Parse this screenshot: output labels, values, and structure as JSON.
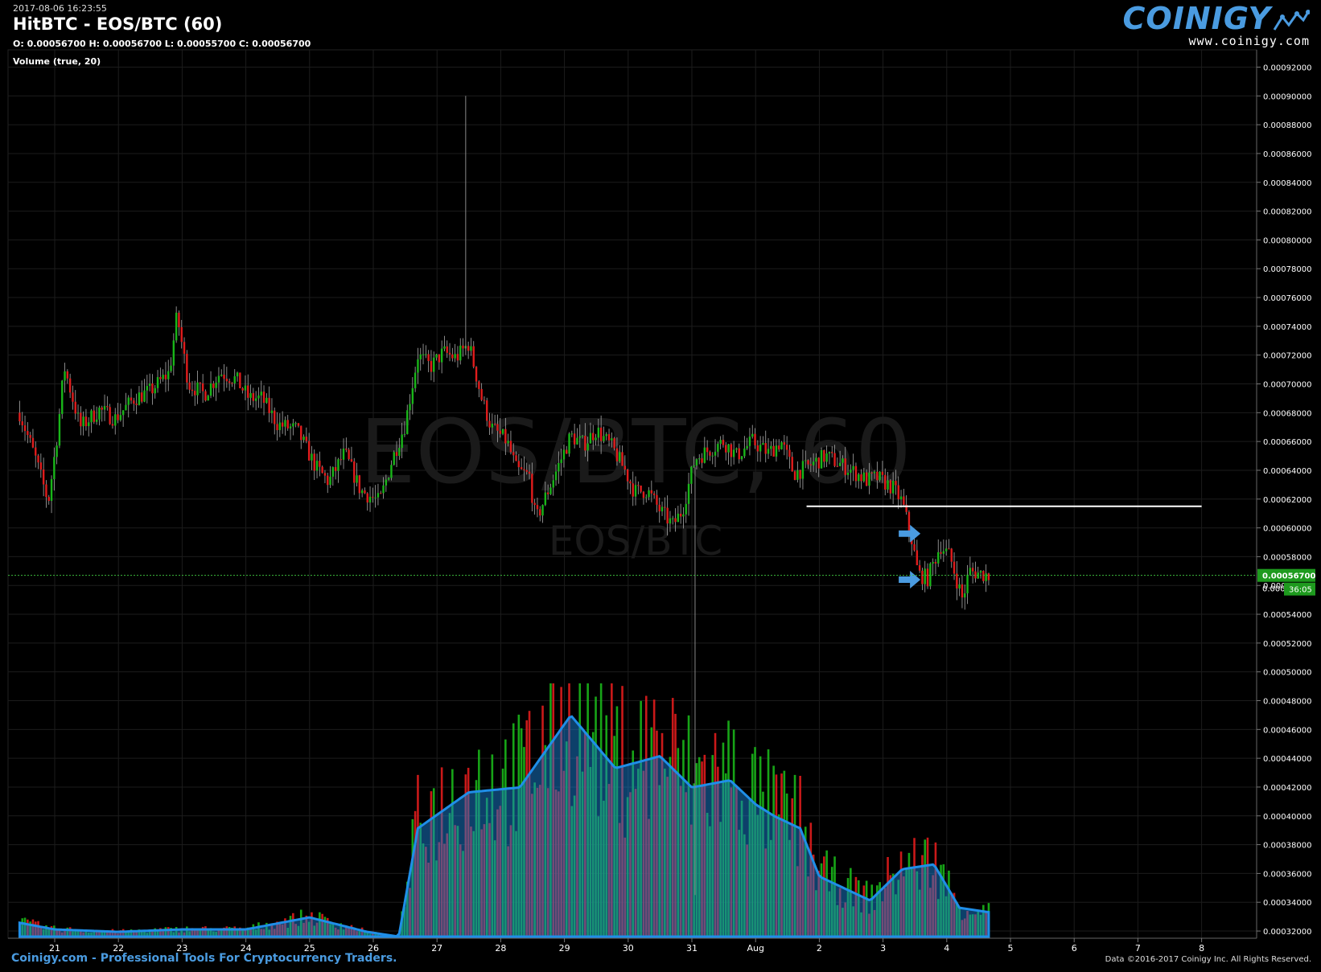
{
  "header": {
    "timestamp": "2017-08-06 16:23:55",
    "title": "HitBTC - EOS/BTC (60)",
    "ohlc": "O: 0.00056700 H: 0.00056700 L: 0.00055700 C: 0.00056700",
    "volume_label": "Volume (true, 20)"
  },
  "logo": {
    "word": "COINIGY",
    "url": "www.coinigy.com"
  },
  "footer": {
    "left": "Coinigy.com - Professional Tools For Cryptocurrency Traders.",
    "right": "Data ©2016-2017 Coinigy Inc. All Rights Reserved."
  },
  "watermark": {
    "main": "EOS/BTC, 60",
    "sub": "EOS/BTC"
  },
  "colors": {
    "up": "#19b619",
    "down": "#e01c1c",
    "volume_area": "#1a7fd4",
    "accent": "#4a9be0",
    "price_line": "#3cba3c"
  },
  "chart_data": {
    "type": "candlestick",
    "xlabel": "",
    "ylabel": "",
    "x_ticks": [
      "21",
      "22",
      "23",
      "24",
      "25",
      "26",
      "27",
      "28",
      "29",
      "30",
      "31",
      "Aug",
      "2",
      "3",
      "4",
      "5",
      "6",
      "7",
      "8"
    ],
    "y_ticks": [
      "0.00032000",
      "0.00034000",
      "0.00036000",
      "0.00038000",
      "0.00040000",
      "0.00042000",
      "0.00044000",
      "0.00046000",
      "0.00048000",
      "0.00050000",
      "0.00052000",
      "0.00054000",
      "0.00056000",
      "0.00058000",
      "0.00060000",
      "0.00062000",
      "0.00064000",
      "0.00066000",
      "0.00068000",
      "0.00070000",
      "0.00072000",
      "0.00074000",
      "0.00076000",
      "0.00078000",
      "0.00080000",
      "0.00082000",
      "0.00084000",
      "0.00086000",
      "0.00088000",
      "0.00090000",
      "0.00092000"
    ],
    "ylim": [
      0.000315,
      0.000932
    ],
    "xlim": [
      20.4,
      39.3
    ],
    "grid": true,
    "close_series": [
      [
        20.45,
        0.00068
      ],
      [
        20.7,
        0.000648
      ],
      [
        20.9,
        0.000618
      ],
      [
        21.05,
        0.000668
      ],
      [
        21.15,
        0.000712
      ],
      [
        21.4,
        0.00067
      ],
      [
        21.7,
        0.000682
      ],
      [
        21.95,
        0.000676
      ],
      [
        22.25,
        0.00069
      ],
      [
        22.5,
        0.000695
      ],
      [
        22.8,
        0.000708
      ],
      [
        22.92,
        0.000748
      ],
      [
        23.1,
        0.0007
      ],
      [
        23.35,
        0.000693
      ],
      [
        23.6,
        0.000708
      ],
      [
        23.85,
        0.000703
      ],
      [
        24.05,
        0.00069
      ],
      [
        24.25,
        0.00069
      ],
      [
        24.5,
        0.000672
      ],
      [
        24.8,
        0.000668
      ],
      [
        25.1,
        0.000642
      ],
      [
        25.3,
        0.000632
      ],
      [
        25.55,
        0.000652
      ],
      [
        25.8,
        0.000626
      ],
      [
        26.1,
        0.000618
      ],
      [
        26.3,
        0.000648
      ],
      [
        26.5,
        0.000672
      ],
      [
        26.7,
        0.00072
      ],
      [
        26.9,
        0.000712
      ],
      [
        27.1,
        0.000722
      ],
      [
        27.3,
        0.000718
      ],
      [
        27.5,
        0.000728
      ],
      [
        27.7,
        0.00069
      ],
      [
        27.85,
        0.00067
      ],
      [
        28.1,
        0.00066
      ],
      [
        28.25,
        0.00064
      ],
      [
        28.45,
        0.000636
      ],
      [
        28.55,
        0.000605
      ],
      [
        28.8,
        0.000632
      ],
      [
        29.1,
        0.000664
      ],
      [
        29.3,
        0.000658
      ],
      [
        29.5,
        0.000668
      ],
      [
        29.75,
        0.000656
      ],
      [
        29.95,
        0.00064
      ],
      [
        30.1,
        0.000625
      ],
      [
        30.3,
        0.000626
      ],
      [
        30.5,
        0.000612
      ],
      [
        30.7,
        0.000602
      ],
      [
        30.85,
        0.000612
      ],
      [
        31.05,
        0.000648
      ],
      [
        31.3,
        0.000655
      ],
      [
        31.5,
        0.00066
      ],
      [
        31.7,
        0.00065
      ],
      [
        31.95,
        0.00066
      ],
      [
        32.2,
        0.000652
      ],
      [
        32.4,
        0.00066
      ],
      [
        32.6,
        0.000638
      ],
      [
        32.8,
        0.000642
      ],
      [
        33.1,
        0.00065
      ],
      [
        33.3,
        0.000645
      ],
      [
        33.5,
        0.00064
      ],
      [
        33.75,
        0.000633
      ],
      [
        33.9,
        0.000635
      ],
      [
        34.15,
        0.000628
      ],
      [
        34.3,
        0.000618
      ],
      [
        34.45,
        0.000592
      ],
      [
        34.55,
        0.000568
      ],
      [
        34.7,
        0.000565
      ],
      [
        34.9,
        0.000588
      ],
      [
        35.05,
        0.00058
      ],
      [
        35.25,
        0.00055
      ],
      [
        35.35,
        0.00057
      ],
      [
        35.55,
        0.000568
      ],
      [
        35.7,
        0.000567
      ]
    ],
    "volume": {
      "label": "Volume (true, 20)",
      "overlay": "20-period moving average"
    },
    "annotations": [
      {
        "type": "horizontal_line",
        "price": 0.000615,
        "x_from": 32.8,
        "x_to": 39.0,
        "color": "#ffffff"
      },
      {
        "type": "arrow",
        "price": 0.000596,
        "x": 34.6,
        "color": "#4a9be0"
      },
      {
        "type": "arrow",
        "price": 0.000564,
        "x": 34.6,
        "color": "#4a9be0"
      }
    ],
    "last_price": {
      "label": "0.00056700",
      "value": 0.000567,
      "countdown": "36:05",
      "prev_tick_label": "0.000"
    }
  }
}
